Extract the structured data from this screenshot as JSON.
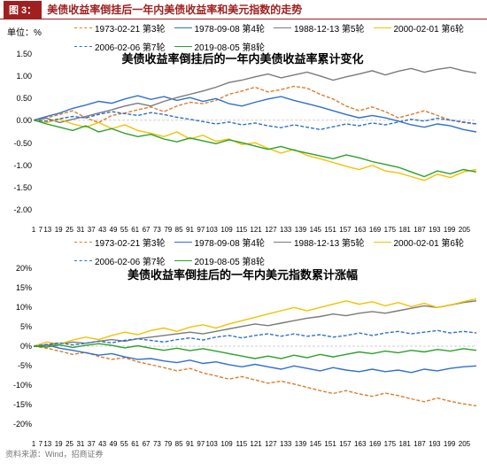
{
  "figure": {
    "title_prefix": "图 3：",
    "title": "美债收益率倒挂后一年内美债收益率和美元指数的走势",
    "title_color": "#a02020",
    "source": "资料来源：Wind，招商证券"
  },
  "legend": {
    "series": [
      {
        "label": "1973-02-21 第3轮",
        "color": "#e07b28",
        "dash": "4 2"
      },
      {
        "label": "1978-09-08 第4轮",
        "color": "#2f6fd0",
        "dash": ""
      },
      {
        "label": "1988-12-13 第5轮",
        "color": "#7a7a7a",
        "dash": ""
      },
      {
        "label": "2000-02-01 第6轮",
        "color": "#f2c200",
        "dash": ""
      },
      {
        "label": "2006-02-06 第7轮",
        "color": "#2f6fd0",
        "dash": "4 2"
      },
      {
        "label": "2019-08-05 第8轮",
        "color": "#2ca02c",
        "dash": ""
      }
    ],
    "stroke_width": 1.4,
    "font_size": 10
  },
  "chart1": {
    "unit": "单位：%",
    "subtitle": "美债收益率倒挂后的一年内美债收益率累计变化",
    "ylim": [
      -2.0,
      1.5
    ],
    "ytick_step": 0.5,
    "yticks": [
      "1.50",
      "1.00",
      "0.50",
      "0.00",
      "-0.50",
      "-1.00",
      "-1.50",
      "-2.00"
    ],
    "xticks": [
      "1",
      "7",
      "13",
      "19",
      "25",
      "31",
      "37",
      "43",
      "49",
      "55",
      "61",
      "67",
      "73",
      "79",
      "85",
      "91",
      "97",
      "103",
      "109",
      "115",
      "121",
      "127",
      "133",
      "139",
      "145",
      "151",
      "157",
      "163",
      "169",
      "175",
      "181",
      "187",
      "193",
      "199",
      "205"
    ],
    "zero_line_color": "#cfcfcf",
    "series_data": {
      "s0": [
        0,
        0.05,
        0.12,
        0.2,
        0.05,
        -0.05,
        0.1,
        0.15,
        0.22,
        0.28,
        0.18,
        0.3,
        0.38,
        0.35,
        0.42,
        0.55,
        0.62,
        0.7,
        0.6,
        0.65,
        0.72,
        0.68,
        0.55,
        0.45,
        0.3,
        0.2,
        0.28,
        0.18,
        0.05,
        0.12,
        0.2,
        0.1,
        0.0,
        -0.05,
        -0.08
      ],
      "s1": [
        0,
        0.08,
        0.15,
        0.25,
        0.32,
        0.4,
        0.36,
        0.45,
        0.52,
        0.44,
        0.5,
        0.42,
        0.48,
        0.4,
        0.46,
        0.35,
        0.3,
        0.38,
        0.45,
        0.5,
        0.42,
        0.35,
        0.28,
        0.2,
        0.12,
        0.05,
        0.1,
        0.05,
        -0.02,
        -0.1,
        -0.15,
        -0.08,
        -0.12,
        -0.2,
        -0.25
      ],
      "s2": [
        0,
        0.04,
        -0.05,
        0.02,
        0.08,
        0.15,
        0.22,
        0.3,
        0.36,
        0.3,
        0.4,
        0.48,
        0.55,
        0.62,
        0.7,
        0.8,
        0.85,
        0.92,
        0.98,
        0.9,
        0.96,
        1.02,
        0.94,
        0.85,
        0.92,
        0.98,
        1.05,
        0.96,
        1.04,
        1.1,
        1.02,
        1.08,
        1.12,
        1.05,
        1.0
      ],
      "s3": [
        0,
        -0.05,
        0.02,
        -0.08,
        -0.15,
        -0.05,
        -0.18,
        -0.1,
        -0.22,
        -0.28,
        -0.35,
        -0.25,
        -0.4,
        -0.32,
        -0.45,
        -0.4,
        -0.52,
        -0.48,
        -0.6,
        -0.7,
        -0.62,
        -0.75,
        -0.82,
        -0.9,
        -0.98,
        -1.05,
        -0.96,
        -1.08,
        -1.12,
        -1.2,
        -1.28,
        -1.15,
        -1.22,
        -1.1,
        -1.05
      ],
      "s4": [
        0,
        -0.02,
        0.03,
        0.08,
        0.05,
        0.12,
        0.18,
        0.14,
        0.1,
        0.16,
        0.12,
        0.06,
        0.02,
        -0.03,
        -0.08,
        -0.04,
        -0.1,
        -0.06,
        -0.12,
        -0.16,
        -0.1,
        -0.15,
        -0.2,
        -0.14,
        -0.08,
        -0.12,
        -0.06,
        -0.1,
        -0.04,
        0.02,
        -0.02,
        0.04,
        0.0,
        -0.04,
        -0.08
      ],
      "s5": [
        0,
        -0.08,
        -0.15,
        -0.22,
        -0.12,
        -0.25,
        -0.18,
        -0.28,
        -0.35,
        -0.3,
        -0.4,
        -0.46,
        -0.38,
        -0.44,
        -0.5,
        -0.42,
        -0.48,
        -0.55,
        -0.62,
        -0.56,
        -0.64,
        -0.7,
        -0.76,
        -0.82,
        -0.74,
        -0.8,
        -0.88,
        -0.94,
        -1.0,
        -1.1,
        -1.2,
        -1.08,
        -1.14,
        -1.05,
        -1.1
      ]
    }
  },
  "chart2": {
    "subtitle": "美债收益率倒挂后的一年内美元指数累计涨幅",
    "ylim": [
      -20,
      20
    ],
    "ytick_step": 5,
    "yticks": [
      "20%",
      "15%",
      "10%",
      "5%",
      "0%",
      "-5%",
      "-10%",
      "-15%",
      "-20%"
    ],
    "xticks": [
      "1",
      "7",
      "13",
      "19",
      "25",
      "31",
      "37",
      "43",
      "49",
      "55",
      "61",
      "67",
      "73",
      "79",
      "85",
      "91",
      "97",
      "103",
      "109",
      "115",
      "121",
      "127",
      "133",
      "139",
      "145",
      "151",
      "157",
      "163",
      "169",
      "175",
      "181",
      "187",
      "193",
      "199",
      "205"
    ],
    "zero_line_color": "#cfcfcf",
    "series_data": {
      "s0": [
        0,
        -0.5,
        -1.2,
        -2.0,
        -1.5,
        -2.5,
        -3.2,
        -2.8,
        -3.8,
        -4.5,
        -5.2,
        -6.0,
        -5.4,
        -6.5,
        -7.2,
        -8.0,
        -7.4,
        -8.2,
        -9.0,
        -8.5,
        -9.2,
        -10.0,
        -10.8,
        -11.5,
        -10.8,
        -11.6,
        -12.2,
        -11.4,
        -12.0,
        -12.8,
        -13.5,
        -12.6,
        -13.4,
        -14.0,
        -14.5
      ],
      "s1": [
        0,
        0.3,
        -0.5,
        -1.0,
        -1.6,
        -2.2,
        -1.8,
        -2.6,
        -3.2,
        -3.0,
        -3.6,
        -4.0,
        -3.4,
        -4.2,
        -3.8,
        -4.5,
        -5.0,
        -4.4,
        -5.0,
        -5.6,
        -4.8,
        -5.4,
        -6.0,
        -5.2,
        -5.8,
        -6.2,
        -5.6,
        -6.2,
        -5.8,
        -6.4,
        -5.6,
        -6.0,
        -5.4,
        -5.0,
        -4.8
      ],
      "s2": [
        0,
        0.2,
        0.6,
        1.0,
        0.7,
        1.2,
        1.6,
        1.2,
        1.8,
        2.2,
        2.6,
        3.0,
        3.4,
        3.0,
        3.6,
        4.2,
        4.8,
        5.4,
        5.0,
        5.6,
        6.2,
        6.8,
        7.2,
        7.8,
        7.4,
        8.0,
        8.4,
        8.0,
        8.6,
        9.2,
        9.8,
        9.4,
        10.0,
        10.6,
        11.0
      ],
      "s3": [
        0,
        1.0,
        0.5,
        1.5,
        2.2,
        1.6,
        2.6,
        3.4,
        2.8,
        3.8,
        4.4,
        3.6,
        4.6,
        5.2,
        4.4,
        5.4,
        6.2,
        7.0,
        7.8,
        8.6,
        9.4,
        8.6,
        9.4,
        10.2,
        11.0,
        10.2,
        10.8,
        9.8,
        10.6,
        9.6,
        10.4,
        9.4,
        10.0,
        10.8,
        11.5
      ],
      "s4": [
        0,
        0.4,
        0.8,
        0.3,
        0.7,
        1.2,
        0.8,
        1.4,
        1.8,
        1.4,
        1.0,
        1.6,
        2.0,
        1.5,
        2.2,
        2.6,
        2.0,
        2.6,
        3.0,
        2.4,
        3.0,
        2.4,
        2.8,
        2.2,
        2.6,
        3.2,
        2.6,
        3.2,
        3.6,
        3.0,
        3.4,
        3.8,
        3.2,
        3.6,
        3.2
      ],
      "s5": [
        0,
        -0.2,
        0.3,
        -0.3,
        0.2,
        0.6,
        0.2,
        -0.4,
        0.1,
        -0.5,
        -1.0,
        -0.5,
        -1.1,
        -0.6,
        -1.2,
        -1.8,
        -2.4,
        -3.0,
        -2.4,
        -3.0,
        -2.2,
        -2.8,
        -2.0,
        -2.6,
        -2.0,
        -1.4,
        -1.8,
        -1.2,
        -1.6,
        -1.0,
        -1.4,
        -0.8,
        -1.2,
        -0.6,
        -1.0
      ]
    }
  }
}
